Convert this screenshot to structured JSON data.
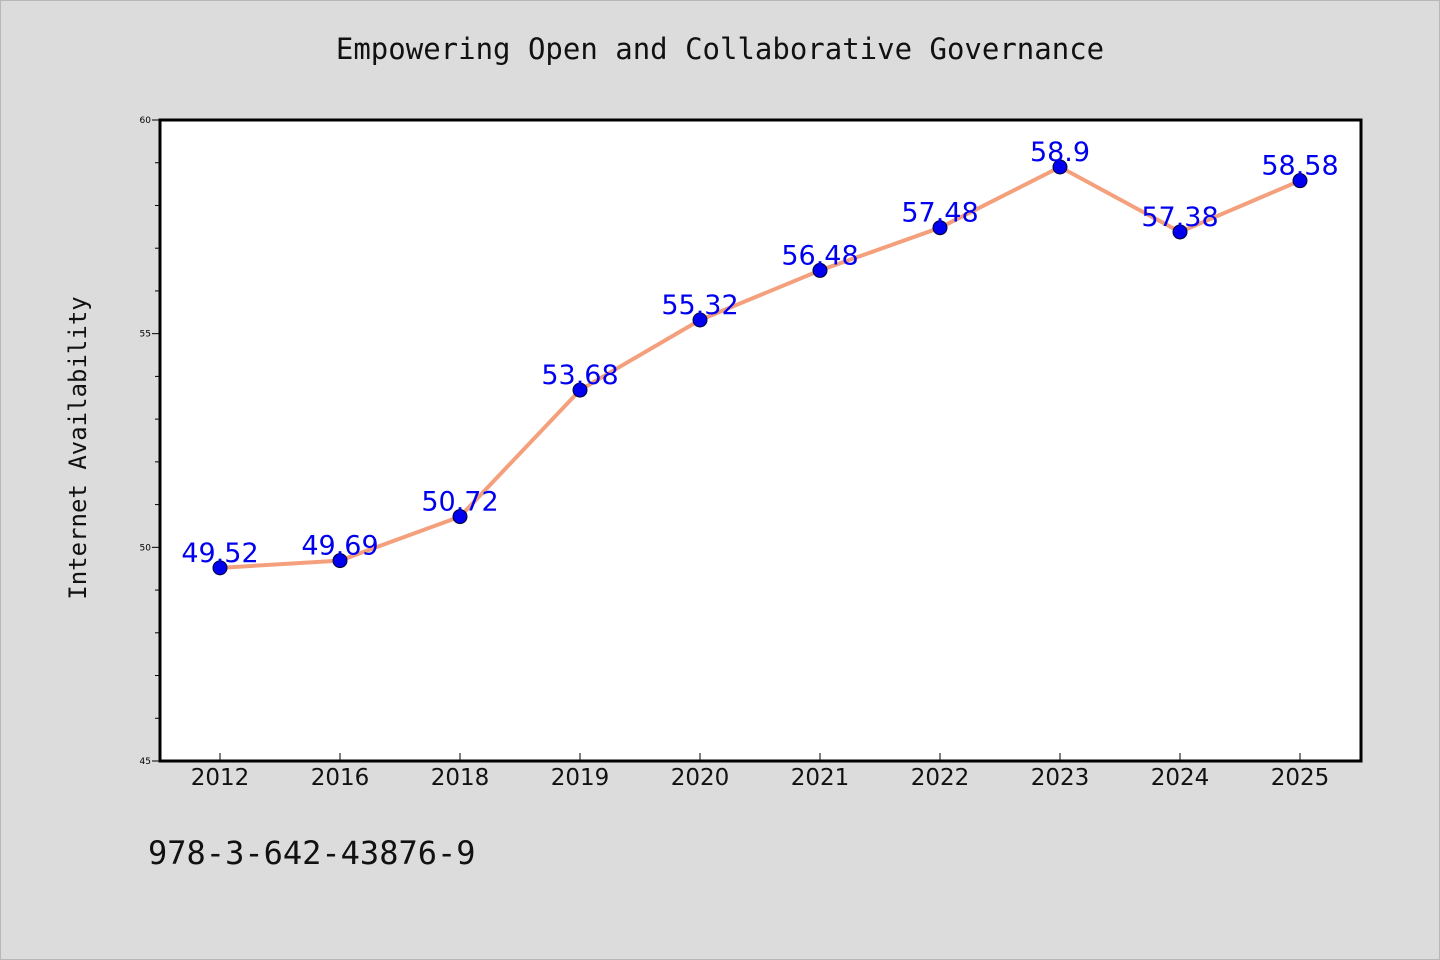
{
  "chart_data": {
    "type": "line",
    "title": "Empowering Open and Collaborative Governance",
    "xlabel": "",
    "ylabel": "Internet Availability",
    "categories": [
      "2012",
      "2016",
      "2018",
      "2019",
      "2020",
      "2021",
      "2022",
      "2023",
      "2024",
      "2025"
    ],
    "series": [
      {
        "values": [
          49.52,
          49.69,
          50.72,
          53.68,
          55.32,
          56.48,
          57.48,
          58.9,
          57.38,
          58.58
        ],
        "line_color": "#f4a07c",
        "marker_color": "#0000ee"
      }
    ],
    "data_labels": [
      "49.52",
      "49.69",
      "50.72",
      "53.68",
      "55.32",
      "56.48",
      "57.48",
      "58.9",
      "57.38",
      "58.58"
    ],
    "ylim": [
      45,
      60
    ],
    "y_ticks": [
      45,
      50,
      55,
      60
    ],
    "y_tick_labels": [
      "45",
      "50",
      "55",
      "60"
    ],
    "grid": false,
    "label_color": "#0000ee"
  },
  "footer": {
    "isbn": "978-3-642-43876-9"
  }
}
